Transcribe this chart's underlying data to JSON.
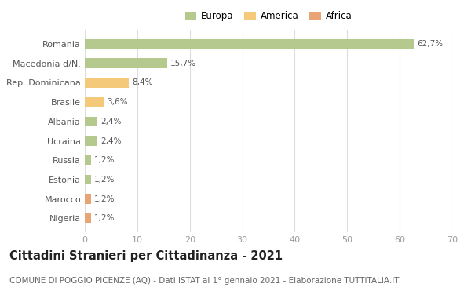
{
  "categories": [
    "Romania",
    "Macedonia d/N.",
    "Rep. Dominicana",
    "Brasile",
    "Albania",
    "Ucraina",
    "Russia",
    "Estonia",
    "Marocco",
    "Nigeria"
  ],
  "values": [
    62.7,
    15.7,
    8.4,
    3.6,
    2.4,
    2.4,
    1.2,
    1.2,
    1.2,
    1.2
  ],
  "labels": [
    "62,7%",
    "15,7%",
    "8,4%",
    "3,6%",
    "2,4%",
    "2,4%",
    "1,2%",
    "1,2%",
    "1,2%",
    "1,2%"
  ],
  "continent": [
    "Europa",
    "Europa",
    "America",
    "America",
    "Europa",
    "Europa",
    "Europa",
    "Europa",
    "Africa",
    "Africa"
  ],
  "colors": {
    "Europa": "#b5c98e",
    "America": "#f5c97a",
    "Africa": "#e8a474"
  },
  "legend": [
    {
      "label": "Europa",
      "color": "#b5c98e"
    },
    {
      "label": "America",
      "color": "#f5c97a"
    },
    {
      "label": "Africa",
      "color": "#e8a474"
    }
  ],
  "xlim": [
    0,
    70
  ],
  "xticks": [
    0,
    10,
    20,
    30,
    40,
    50,
    60,
    70
  ],
  "title": "Cittadini Stranieri per Cittadinanza - 2021",
  "subtitle": "COMUNE DI POGGIO PICENZE (AQ) - Dati ISTAT al 1° gennaio 2021 - Elaborazione TUTTITALIA.IT",
  "background_color": "#ffffff",
  "grid_color": "#dddddd",
  "bar_height": 0.5,
  "label_fontsize": 7.5,
  "ytick_fontsize": 8,
  "xtick_fontsize": 8,
  "title_fontsize": 10.5,
  "subtitle_fontsize": 7.5,
  "legend_fontsize": 8.5
}
